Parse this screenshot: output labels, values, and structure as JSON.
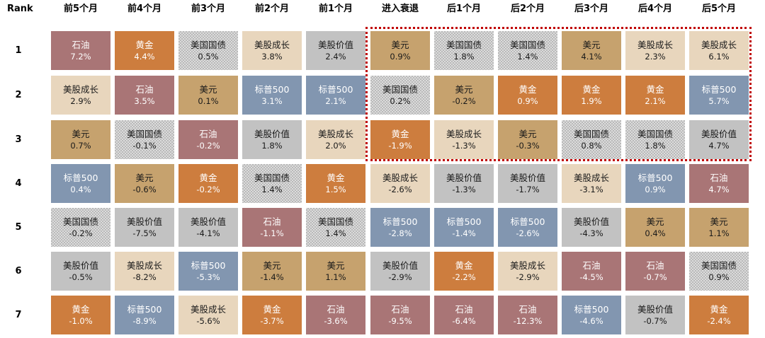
{
  "rank_label": "Rank",
  "columns": [
    "前5个月",
    "前4个月",
    "前3个月",
    "前2个月",
    "前1个月",
    "进入衰退",
    "后1个月",
    "后2个月",
    "后3个月",
    "后4个月",
    "后5个月"
  ],
  "ranks": [
    "1",
    "2",
    "3",
    "4",
    "5",
    "6",
    "7"
  ],
  "colors": {
    "石油": "#a97576",
    "黄金": "#cd7d3e",
    "美国国债": "#c8c8c8",
    "美股成长": "#e8d6bd",
    "美股价值": "#c2c2c2",
    "美元": "#c6a26e",
    "标普500": "#8296b0",
    "highlight_border": "#c00000"
  },
  "chart_data": {
    "type": "table",
    "highlight": {
      "columns": [
        "进入衰退",
        "后1个月",
        "后2个月",
        "后3个月",
        "后4个月",
        "后5个月"
      ],
      "ranks": [
        "1",
        "2",
        "3"
      ]
    },
    "cells": [
      [
        {
          "asset": "石油",
          "value": "7.2%"
        },
        {
          "asset": "美股成长",
          "value": "2.9%"
        },
        {
          "asset": "美元",
          "value": "0.7%"
        },
        {
          "asset": "标普500",
          "value": "0.4%"
        },
        {
          "asset": "美国国债",
          "value": "-0.2%"
        },
        {
          "asset": "美股价值",
          "value": "-0.5%"
        },
        {
          "asset": "黄金",
          "value": "-1.0%"
        }
      ],
      [
        {
          "asset": "黄金",
          "value": "4.4%"
        },
        {
          "asset": "石油",
          "value": "3.5%"
        },
        {
          "asset": "美国国债",
          "value": "-0.1%"
        },
        {
          "asset": "美元",
          "value": "-0.6%"
        },
        {
          "asset": "美股价值",
          "value": "-7.5%"
        },
        {
          "asset": "美股成长",
          "value": "-8.2%"
        },
        {
          "asset": "标普500",
          "value": "-8.9%"
        }
      ],
      [
        {
          "asset": "美国国债",
          "value": "0.5%"
        },
        {
          "asset": "美元",
          "value": "0.1%"
        },
        {
          "asset": "石油",
          "value": "-0.2%"
        },
        {
          "asset": "黄金",
          "value": "-0.2%"
        },
        {
          "asset": "美股价值",
          "value": "-4.1%"
        },
        {
          "asset": "标普500",
          "value": "-5.3%"
        },
        {
          "asset": "美股成长",
          "value": "-5.6%"
        }
      ],
      [
        {
          "asset": "美股成长",
          "value": "3.8%"
        },
        {
          "asset": "标普500",
          "value": "3.1%"
        },
        {
          "asset": "美股价值",
          "value": "1.8%"
        },
        {
          "asset": "美国国债",
          "value": "1.4%"
        },
        {
          "asset": "石油",
          "value": "-1.1%"
        },
        {
          "asset": "美元",
          "value": "-1.4%"
        },
        {
          "asset": "黄金",
          "value": "-3.7%"
        }
      ],
      [
        {
          "asset": "美股价值",
          "value": "2.4%"
        },
        {
          "asset": "标普500",
          "value": "2.1%"
        },
        {
          "asset": "美股成长",
          "value": "2.0%"
        },
        {
          "asset": "黄金",
          "value": "1.5%"
        },
        {
          "asset": "美国国债",
          "value": "1.4%"
        },
        {
          "asset": "美元",
          "value": "1.1%"
        },
        {
          "asset": "石油",
          "value": "-3.6%"
        }
      ],
      [
        {
          "asset": "美元",
          "value": "0.9%"
        },
        {
          "asset": "美国国债",
          "value": "0.2%"
        },
        {
          "asset": "黄金",
          "value": "-1.9%"
        },
        {
          "asset": "美股成长",
          "value": "-2.6%"
        },
        {
          "asset": "标普500",
          "value": "-2.8%"
        },
        {
          "asset": "美股价值",
          "value": "-2.9%"
        },
        {
          "asset": "石油",
          "value": "-9.5%"
        }
      ],
      [
        {
          "asset": "美国国债",
          "value": "1.8%"
        },
        {
          "asset": "美元",
          "value": "-0.2%"
        },
        {
          "asset": "美股成长",
          "value": "-1.3%"
        },
        {
          "asset": "美股价值",
          "value": "-1.3%"
        },
        {
          "asset": "标普500",
          "value": "-1.4%"
        },
        {
          "asset": "黄金",
          "value": "-2.2%"
        },
        {
          "asset": "石油",
          "value": "-6.4%"
        }
      ],
      [
        {
          "asset": "美国国债",
          "value": "1.4%"
        },
        {
          "asset": "黄金",
          "value": "0.9%"
        },
        {
          "asset": "美元",
          "value": "-0.3%"
        },
        {
          "asset": "美股价值",
          "value": "-1.7%"
        },
        {
          "asset": "标普500",
          "value": "-2.6%"
        },
        {
          "asset": "美股成长",
          "value": "-2.9%"
        },
        {
          "asset": "石油",
          "value": "-12.3%"
        }
      ],
      [
        {
          "asset": "美元",
          "value": "4.1%"
        },
        {
          "asset": "黄金",
          "value": "1.9%"
        },
        {
          "asset": "美国国债",
          "value": "0.8%"
        },
        {
          "asset": "美股成长",
          "value": "-3.1%"
        },
        {
          "asset": "美股价值",
          "value": "-4.3%"
        },
        {
          "asset": "石油",
          "value": "-4.5%"
        },
        {
          "asset": "标普500",
          "value": "-4.6%"
        }
      ],
      [
        {
          "asset": "美股成长",
          "value": "2.3%"
        },
        {
          "asset": "黄金",
          "value": "2.1%"
        },
        {
          "asset": "美国国债",
          "value": "1.8%"
        },
        {
          "asset": "标普500",
          "value": "0.9%"
        },
        {
          "asset": "美元",
          "value": "0.4%"
        },
        {
          "asset": "石油",
          "value": "-0.7%"
        },
        {
          "asset": "美股价值",
          "value": "-0.7%"
        }
      ],
      [
        {
          "asset": "美股成长",
          "value": "6.1%"
        },
        {
          "asset": "标普500",
          "value": "5.7%"
        },
        {
          "asset": "美股价值",
          "value": "4.7%"
        },
        {
          "asset": "石油",
          "value": "4.7%"
        },
        {
          "asset": "美元",
          "value": "1.1%"
        },
        {
          "asset": "美国国债",
          "value": "0.9%"
        },
        {
          "asset": "黄金",
          "value": "-2.4%"
        }
      ]
    ]
  }
}
